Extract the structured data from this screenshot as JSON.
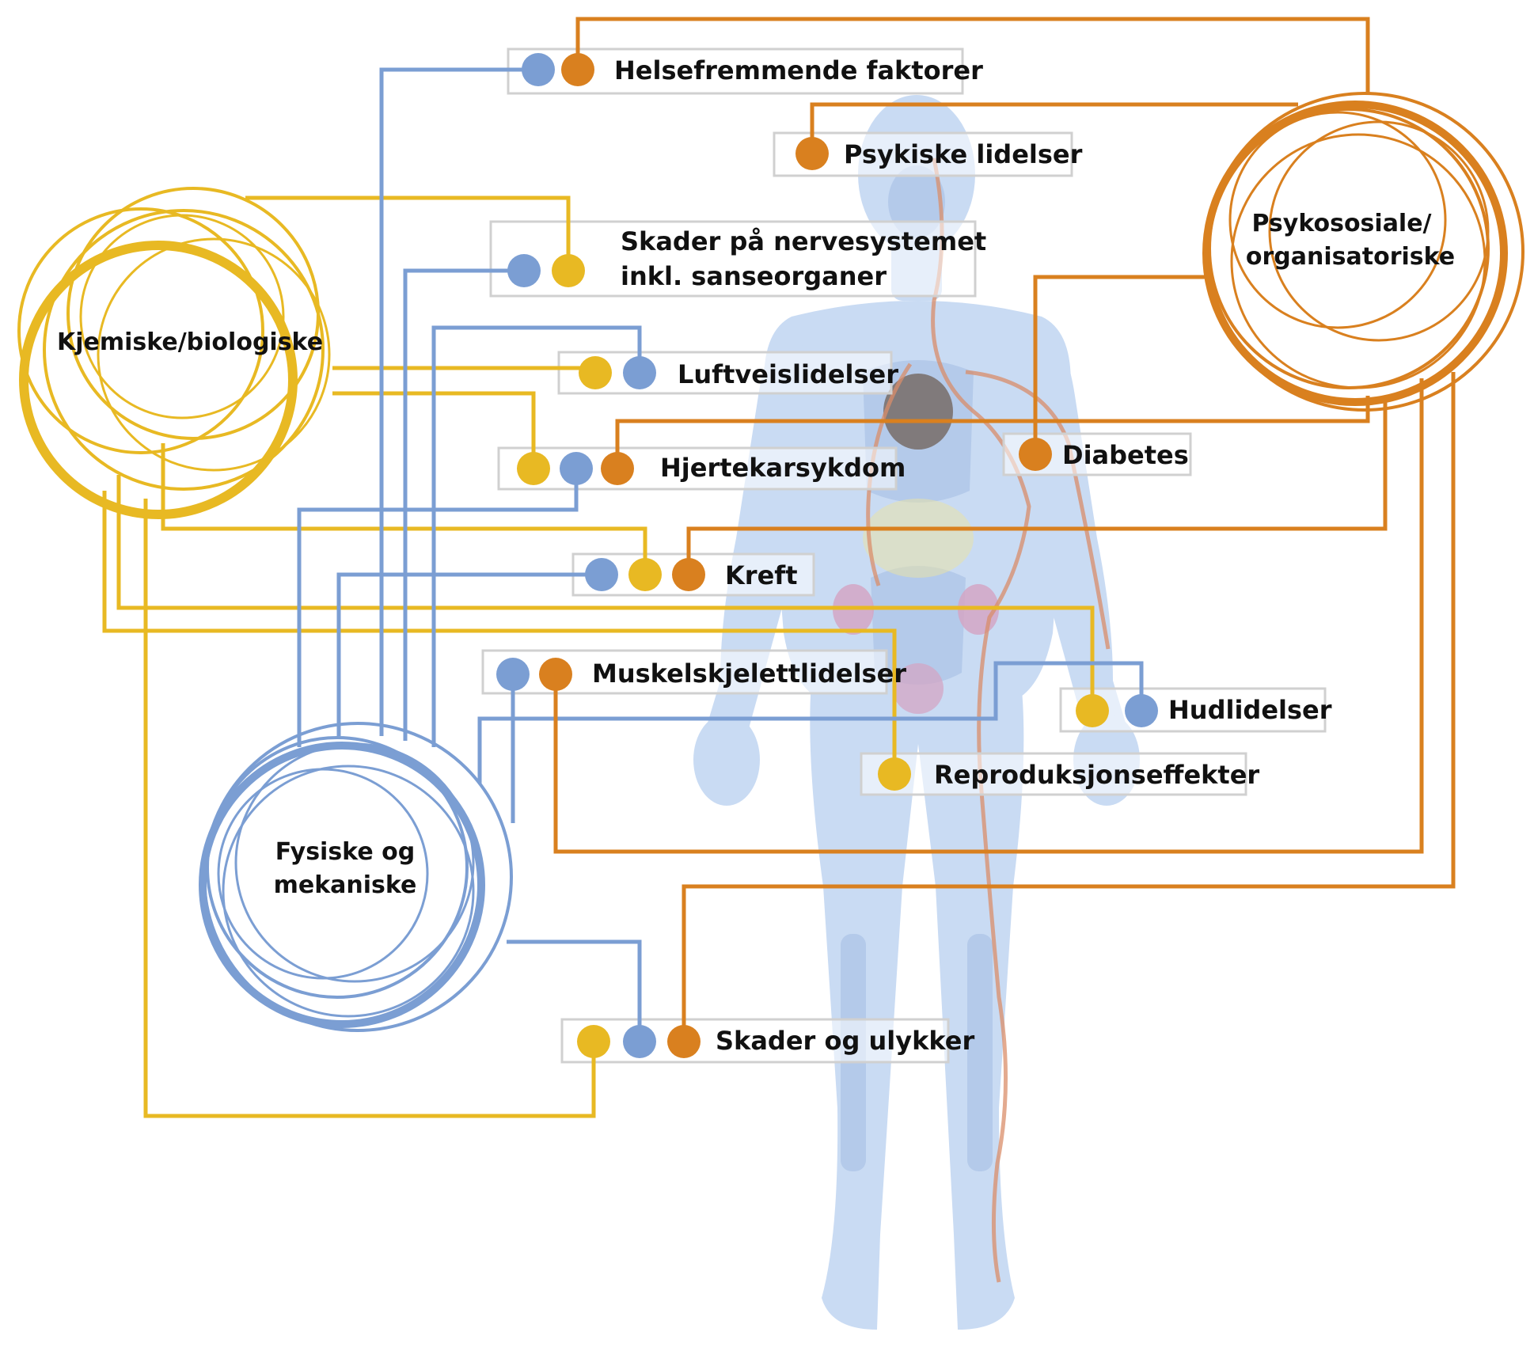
{
  "colors": {
    "yellow": "#E8B923",
    "blue": "#7B9ED3",
    "orange": "#D9801F",
    "body": "#C9DBF3",
    "label_box": "#D0D0D0"
  },
  "hubs": {
    "chemical": "Kjemiske/biologiske",
    "psychosocial_1": "Psykososiale/",
    "psychosocial_2": "organisatoriske",
    "physical_1": "Fysiske og",
    "physical_2": "mekaniske"
  },
  "outcomes": {
    "health_promoting": "Helsefremmende faktorer",
    "mental": "Psykiske lidelser",
    "nervous_1": "Skader på nervesystemet",
    "nervous_2": "inkl. sanseorganer",
    "respiratory": "Luftveislidelser",
    "cardiovascular": "Hjertekarsykdom",
    "diabetes": "Diabetes",
    "cancer": "Kreft",
    "musculoskeletal": "Muskelskjelettlidelser",
    "skin": "Hudlidelser",
    "reproductive": "Reproduksjonseffekter",
    "injuries": "Skader og ulykker"
  }
}
